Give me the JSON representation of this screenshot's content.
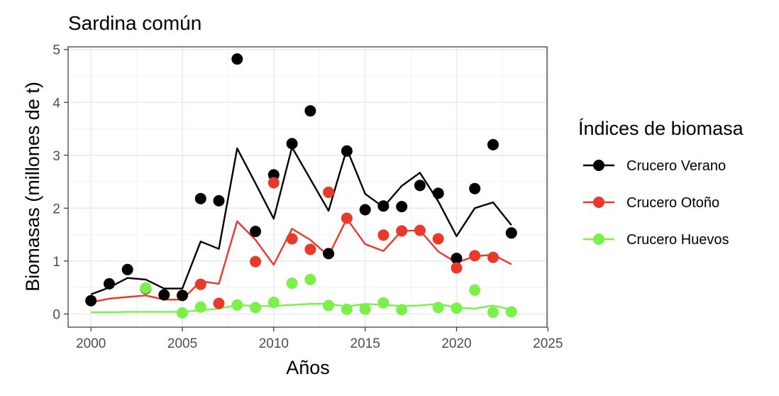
{
  "chart_data": {
    "type": "scatter",
    "title": "Sardina común",
    "xlabel": "Años",
    "ylabel": "Biomasas (millones de t)",
    "xlim": [
      1998.75,
      2024.95
    ],
    "ylim": [
      -0.25,
      5.05
    ],
    "x_ticks": [
      2000,
      2005,
      2010,
      2015,
      2020,
      2025
    ],
    "y_ticks": [
      0,
      1,
      2,
      3,
      4,
      5
    ],
    "grid": true,
    "legend_title": "Índices de biomasa",
    "legend_position": "right",
    "series": [
      {
        "name": "Crucero Verano",
        "color": "#000000",
        "points": [
          [
            2000,
            0.25
          ],
          [
            2001,
            0.57
          ],
          [
            2002,
            0.84
          ],
          [
            2003,
            0.48
          ],
          [
            2004,
            0.36
          ],
          [
            2005,
            0.35
          ],
          [
            2006,
            2.18
          ],
          [
            2007,
            2.14
          ],
          [
            2008,
            4.82
          ],
          [
            2009,
            1.56
          ],
          [
            2010,
            2.63
          ],
          [
            2011,
            3.22
          ],
          [
            2012,
            3.84
          ],
          [
            2013,
            1.14
          ],
          [
            2014,
            3.08
          ],
          [
            2015,
            1.97
          ],
          [
            2016,
            2.04
          ],
          [
            2017,
            2.03
          ],
          [
            2018,
            2.43
          ],
          [
            2019,
            2.28
          ],
          [
            2020,
            1.05
          ],
          [
            2021,
            2.37
          ],
          [
            2022,
            3.2
          ],
          [
            2023,
            1.53
          ]
        ],
        "line": [
          [
            2000,
            0.37
          ],
          [
            2001,
            0.5
          ],
          [
            2002,
            0.68
          ],
          [
            2003,
            0.65
          ],
          [
            2004,
            0.48
          ],
          [
            2005,
            0.48
          ],
          [
            2006,
            1.37
          ],
          [
            2007,
            1.23
          ],
          [
            2008,
            3.13
          ],
          [
            2009,
            2.47
          ],
          [
            2010,
            1.8
          ],
          [
            2011,
            3.15
          ],
          [
            2012,
            2.55
          ],
          [
            2013,
            1.95
          ],
          [
            2014,
            3.12
          ],
          [
            2015,
            2.27
          ],
          [
            2016,
            2.02
          ],
          [
            2017,
            2.42
          ],
          [
            2018,
            2.67
          ],
          [
            2019,
            2.13
          ],
          [
            2020,
            1.47
          ],
          [
            2021,
            2.0
          ],
          [
            2022,
            2.11
          ],
          [
            2023,
            1.68
          ]
        ]
      },
      {
        "name": "Crucero Otoño",
        "color": "#e8392a",
        "points": [
          [
            2006,
            0.56
          ],
          [
            2007,
            0.2
          ],
          [
            2009,
            0.99
          ],
          [
            2010,
            2.48
          ],
          [
            2011,
            1.42
          ],
          [
            2012,
            1.22
          ],
          [
            2013,
            2.3
          ],
          [
            2014,
            1.81
          ],
          [
            2016,
            1.49
          ],
          [
            2017,
            1.57
          ],
          [
            2018,
            1.58
          ],
          [
            2019,
            1.42
          ],
          [
            2020,
            0.87
          ],
          [
            2021,
            1.1
          ],
          [
            2022,
            1.07
          ]
        ],
        "line": [
          [
            2000,
            0.22
          ],
          [
            2001,
            0.29
          ],
          [
            2002,
            0.32
          ],
          [
            2003,
            0.35
          ],
          [
            2004,
            0.27
          ],
          [
            2005,
            0.27
          ],
          [
            2006,
            0.62
          ],
          [
            2007,
            0.57
          ],
          [
            2008,
            1.75
          ],
          [
            2009,
            1.4
          ],
          [
            2010,
            0.93
          ],
          [
            2011,
            1.61
          ],
          [
            2012,
            1.4
          ],
          [
            2013,
            1.1
          ],
          [
            2014,
            1.8
          ],
          [
            2015,
            1.32
          ],
          [
            2016,
            1.19
          ],
          [
            2017,
            1.57
          ],
          [
            2018,
            1.58
          ],
          [
            2019,
            1.18
          ],
          [
            2020,
            0.97
          ],
          [
            2021,
            1.09
          ],
          [
            2022,
            1.12
          ],
          [
            2023,
            0.94
          ]
        ]
      },
      {
        "name": "Crucero Huevos",
        "color": "#7cf04a",
        "points": [
          [
            2003,
            0.49
          ],
          [
            2005,
            0.02
          ],
          [
            2006,
            0.13
          ],
          [
            2008,
            0.17
          ],
          [
            2009,
            0.12
          ],
          [
            2010,
            0.22
          ],
          [
            2011,
            0.58
          ],
          [
            2012,
            0.65
          ],
          [
            2013,
            0.16
          ],
          [
            2014,
            0.09
          ],
          [
            2015,
            0.09
          ],
          [
            2016,
            0.21
          ],
          [
            2017,
            0.08
          ],
          [
            2019,
            0.12
          ],
          [
            2020,
            0.11
          ],
          [
            2021,
            0.45
          ],
          [
            2022,
            0.03
          ],
          [
            2023,
            0.04
          ]
        ],
        "line": [
          [
            2000,
            0.03
          ],
          [
            2001,
            0.03
          ],
          [
            2002,
            0.04
          ],
          [
            2003,
            0.04
          ],
          [
            2004,
            0.04
          ],
          [
            2005,
            0.04
          ],
          [
            2006,
            0.07
          ],
          [
            2007,
            0.1
          ],
          [
            2008,
            0.17
          ],
          [
            2009,
            0.15
          ],
          [
            2010,
            0.15
          ],
          [
            2011,
            0.17
          ],
          [
            2012,
            0.19
          ],
          [
            2013,
            0.19
          ],
          [
            2014,
            0.14
          ],
          [
            2015,
            0.19
          ],
          [
            2016,
            0.17
          ],
          [
            2017,
            0.15
          ],
          [
            2018,
            0.16
          ],
          [
            2019,
            0.19
          ],
          [
            2020,
            0.12
          ],
          [
            2021,
            0.1
          ],
          [
            2022,
            0.16
          ],
          [
            2023,
            0.08
          ]
        ]
      }
    ]
  }
}
